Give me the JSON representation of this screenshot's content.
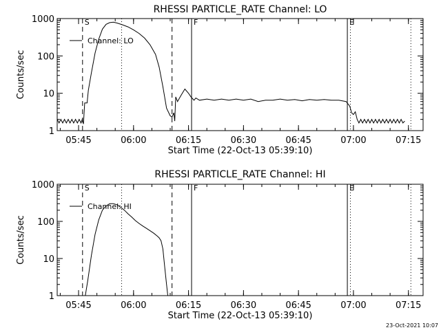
{
  "footer": {
    "timestamp": "23-Oct-2021 10:07"
  },
  "chart_data": [
    {
      "type": "line",
      "title": "RHESSI PARTICLE_RATE Channel: LO",
      "xlabel": "Start Time (22-Oct-13 05:39:10)",
      "ylabel": "Counts/sec",
      "y_scale": "log",
      "ylim": [
        1,
        1000
      ],
      "xlim": [
        "05:39:10",
        "07:19:00"
      ],
      "x_ticks": [
        "05:45",
        "06:00",
        "06:15",
        "06:30",
        "06:45",
        "07:00",
        "07:15"
      ],
      "y_ticks": [
        "1",
        "10",
        "100",
        "1000"
      ],
      "legend": {
        "position": "top-left",
        "label": "Channel: LO"
      },
      "markers": [
        {
          "label": "S",
          "time": "05:46:05",
          "style": "dashed"
        },
        {
          "label": "",
          "time": "05:56:45",
          "style": "dotted"
        },
        {
          "label": "",
          "time": "06:10:30",
          "style": "dashed"
        },
        {
          "label": "F",
          "time": "06:15:50",
          "style": "solid"
        },
        {
          "label": "E",
          "time": "06:58:20",
          "style": "solid"
        },
        {
          "label": "",
          "time": "06:59:10",
          "style": "dotted"
        },
        {
          "label": "",
          "time": "07:15:40",
          "style": "dotted"
        }
      ],
      "series": [
        {
          "points": [
            [
              "05:39:10",
              2
            ],
            [
              "05:39:40",
              1.6
            ],
            [
              "05:40:10",
              2
            ],
            [
              "05:40:40",
              1.6
            ],
            [
              "05:41:10",
              2
            ],
            [
              "05:41:40",
              1.6
            ],
            [
              "05:42:10",
              2
            ],
            [
              "05:42:40",
              1.6
            ],
            [
              "05:43:10",
              2
            ],
            [
              "05:43:40",
              1.6
            ],
            [
              "05:44:10",
              2
            ],
            [
              "05:44:40",
              1.6
            ],
            [
              "05:45:10",
              2
            ],
            [
              "05:45:40",
              1.6
            ],
            [
              "05:46:00",
              2
            ],
            [
              "05:46:20",
              1.5
            ],
            [
              "05:46:40",
              5.5
            ],
            [
              "05:47:20",
              5.5
            ],
            [
              "05:47:40",
              12
            ],
            [
              "05:48:30",
              35
            ],
            [
              "05:49:30",
              120
            ],
            [
              "05:50:30",
              280
            ],
            [
              "05:51:30",
              520
            ],
            [
              "05:52:30",
              700
            ],
            [
              "05:53:30",
              780
            ],
            [
              "05:54:30",
              800
            ],
            [
              "05:55:30",
              760
            ],
            [
              "05:57:00",
              680
            ],
            [
              "05:58:30",
              600
            ],
            [
              "06:00:00",
              500
            ],
            [
              "06:01:30",
              400
            ],
            [
              "06:03:00",
              300
            ],
            [
              "06:04:30",
              200
            ],
            [
              "06:06:00",
              110
            ],
            [
              "06:07:00",
              50
            ],
            [
              "06:08:00",
              15
            ],
            [
              "06:09:00",
              4
            ],
            [
              "06:10:00",
              2.5
            ],
            [
              "06:10:30",
              2.3
            ],
            [
              "06:11:00",
              3
            ],
            [
              "06:11:15",
              1.8
            ],
            [
              "06:11:30",
              8
            ],
            [
              "06:12:00",
              6
            ],
            [
              "06:13:00",
              9
            ],
            [
              "06:14:00",
              13
            ],
            [
              "06:15:00",
              10
            ],
            [
              "06:15:40",
              8
            ],
            [
              "06:16:30",
              6.5
            ],
            [
              "06:17:00",
              7.5
            ],
            [
              "06:18:00",
              6.5
            ],
            [
              "06:20:00",
              7
            ],
            [
              "06:22:00",
              6.5
            ],
            [
              "06:24:00",
              7
            ],
            [
              "06:26:00",
              6.5
            ],
            [
              "06:28:00",
              7
            ],
            [
              "06:30:00",
              6.5
            ],
            [
              "06:32:00",
              7
            ],
            [
              "06:34:00",
              6
            ],
            [
              "06:36:00",
              6.5
            ],
            [
              "06:38:00",
              6.5
            ],
            [
              "06:40:00",
              7
            ],
            [
              "06:42:00",
              6.5
            ],
            [
              "06:44:00",
              6.8
            ],
            [
              "06:46:00",
              6.3
            ],
            [
              "06:48:00",
              6.8
            ],
            [
              "06:50:00",
              6.5
            ],
            [
              "06:52:00",
              6.8
            ],
            [
              "06:54:00",
              6.5
            ],
            [
              "06:56:00",
              6.5
            ],
            [
              "06:58:00",
              6
            ],
            [
              "06:59:00",
              4.5
            ],
            [
              "06:59:30",
              3
            ],
            [
              "07:00:00",
              2.7
            ],
            [
              "07:00:30",
              3.2
            ],
            [
              "07:01:00",
              2
            ],
            [
              "07:01:30",
              1.6
            ],
            [
              "07:02:00",
              2
            ],
            [
              "07:02:30",
              1.6
            ],
            [
              "07:03:00",
              2
            ],
            [
              "07:03:30",
              1.6
            ],
            [
              "07:04:00",
              2
            ],
            [
              "07:04:30",
              1.6
            ],
            [
              "07:05:00",
              2
            ],
            [
              "07:05:30",
              1.6
            ],
            [
              "07:06:00",
              2
            ],
            [
              "07:06:30",
              1.6
            ],
            [
              "07:07:00",
              2
            ],
            [
              "07:07:30",
              1.6
            ],
            [
              "07:08:00",
              2
            ],
            [
              "07:08:30",
              1.6
            ],
            [
              "07:09:00",
              2
            ],
            [
              "07:09:30",
              1.6
            ],
            [
              "07:10:00",
              2
            ],
            [
              "07:10:30",
              1.6
            ],
            [
              "07:11:00",
              2
            ],
            [
              "07:11:30",
              1.6
            ],
            [
              "07:12:00",
              2
            ],
            [
              "07:12:30",
              1.6
            ],
            [
              "07:13:00",
              2
            ],
            [
              "07:13:30",
              1.6
            ],
            [
              "07:14:00",
              1.8
            ]
          ]
        }
      ]
    },
    {
      "type": "line",
      "title": "RHESSI PARTICLE_RATE Channel: HI",
      "xlabel": "Start Time (22-Oct-13 05:39:10)",
      "ylabel": "Counts/sec",
      "y_scale": "log",
      "ylim": [
        1,
        1000
      ],
      "xlim": [
        "05:39:10",
        "07:19:00"
      ],
      "x_ticks": [
        "05:45",
        "06:00",
        "06:15",
        "06:30",
        "06:45",
        "07:00",
        "07:15"
      ],
      "y_ticks": [
        "1",
        "10",
        "100",
        "1000"
      ],
      "legend": {
        "position": "top-left",
        "label": "Channel: HI"
      },
      "markers": [
        {
          "label": "S",
          "time": "05:46:05",
          "style": "dashed"
        },
        {
          "label": "",
          "time": "05:56:45",
          "style": "dotted"
        },
        {
          "label": "",
          "time": "06:10:30",
          "style": "dashed"
        },
        {
          "label": "F",
          "time": "06:15:50",
          "style": "solid"
        },
        {
          "label": "E",
          "time": "06:58:20",
          "style": "solid"
        },
        {
          "label": "",
          "time": "06:59:10",
          "style": "dotted"
        },
        {
          "label": "",
          "time": "07:15:40",
          "style": "dotted"
        }
      ],
      "series": [
        {
          "points": [
            [
              "05:46:50",
              1
            ],
            [
              "05:47:30",
              2.5
            ],
            [
              "05:48:30",
              12
            ],
            [
              "05:49:30",
              45
            ],
            [
              "05:50:30",
              110
            ],
            [
              "05:51:30",
              200
            ],
            [
              "05:52:30",
              260
            ],
            [
              "05:53:30",
              300
            ],
            [
              "05:54:30",
              300
            ],
            [
              "05:55:30",
              280
            ],
            [
              "05:56:30",
              240
            ],
            [
              "05:57:30",
              200
            ],
            [
              "05:58:30",
              160
            ],
            [
              "05:59:30",
              130
            ],
            [
              "06:00:30",
              105
            ],
            [
              "06:01:30",
              88
            ],
            [
              "06:02:30",
              75
            ],
            [
              "06:03:30",
              65
            ],
            [
              "06:04:30",
              56
            ],
            [
              "06:05:30",
              48
            ],
            [
              "06:06:30",
              40
            ],
            [
              "06:07:00",
              36
            ],
            [
              "06:07:30",
              30
            ],
            [
              "06:08:00",
              18
            ],
            [
              "06:08:30",
              6
            ],
            [
              "06:09:00",
              2
            ],
            [
              "06:09:20",
              1
            ]
          ]
        }
      ]
    }
  ]
}
